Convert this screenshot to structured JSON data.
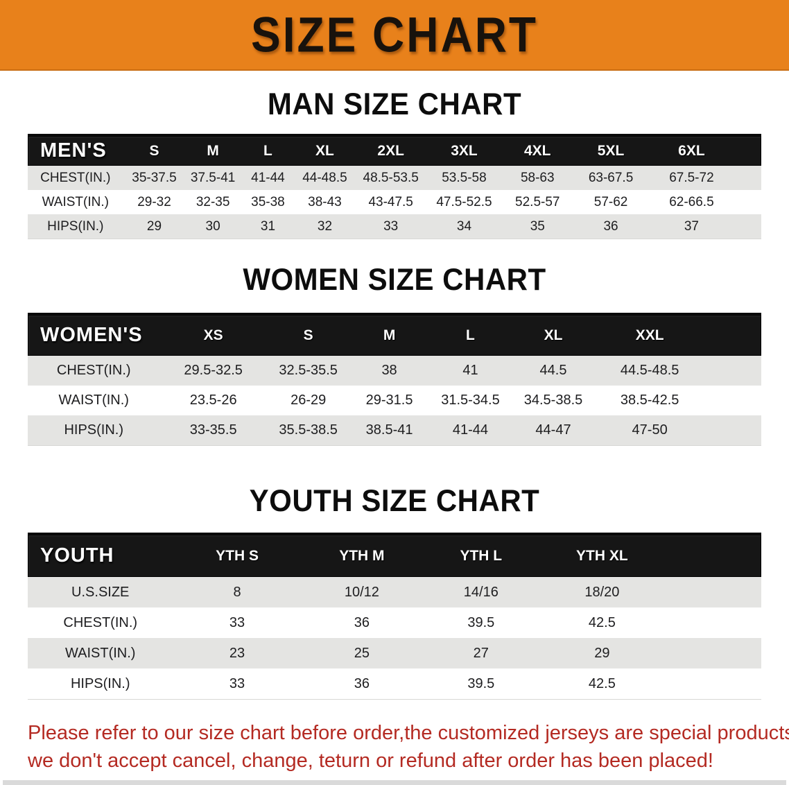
{
  "banner": {
    "title": "SIZE CHART"
  },
  "colors": {
    "banner_bg": "#E8811B",
    "header_bar": "#161616",
    "row_alt": "#E4E4E2",
    "disclaimer_text": "#B42A22"
  },
  "sections": [
    {
      "heading": "MAN SIZE CHART",
      "corner_label": "MEN'S",
      "sizes": [
        "S",
        "M",
        "L",
        "XL",
        "2XL",
        "3XL",
        "4XL",
        "5XL",
        "6XL"
      ],
      "rows": [
        {
          "label": "CHEST(IN.)",
          "shaded": true,
          "values": [
            "35-37.5",
            "37.5-41",
            "41-44",
            "44-48.5",
            "48.5-53.5",
            "53.5-58",
            "58-63",
            "63-67.5",
            "67.5-72"
          ]
        },
        {
          "label": "WAIST(IN.)",
          "shaded": false,
          "values": [
            "29-32",
            "32-35",
            "35-38",
            "38-43",
            "43-47.5",
            "47.5-52.5",
            "52.5-57",
            "57-62",
            "62-66.5"
          ]
        },
        {
          "label": "HIPS(IN.)",
          "shaded": true,
          "values": [
            "29",
            "30",
            "31",
            "32",
            "33",
            "34",
            "35",
            "36",
            "37"
          ]
        }
      ]
    },
    {
      "heading": "WOMEN SIZE CHART",
      "corner_label": "WOMEN'S",
      "sizes": [
        "XS",
        "S",
        "M",
        "L",
        "XL",
        "XXL"
      ],
      "rows": [
        {
          "label": "CHEST(IN.)",
          "shaded": true,
          "values": [
            "29.5-32.5",
            "32.5-35.5",
            "38",
            "41",
            "44.5",
            "44.5-48.5"
          ]
        },
        {
          "label": "WAIST(IN.)",
          "shaded": false,
          "values": [
            "23.5-26",
            "26-29",
            "29-31.5",
            "31.5-34.5",
            "34.5-38.5",
            "38.5-42.5"
          ]
        },
        {
          "label": "HIPS(IN.)",
          "shaded": true,
          "values": [
            "33-35.5",
            "35.5-38.5",
            "38.5-41",
            "41-44",
            "44-47",
            "47-50"
          ]
        }
      ]
    },
    {
      "heading": "YOUTH SIZE CHART",
      "corner_label": "YOUTH",
      "sizes": [
        "YTH S",
        "YTH M",
        "YTH L",
        "YTH XL"
      ],
      "rows": [
        {
          "label": "U.S.SIZE",
          "shaded": true,
          "values": [
            "8",
            "10/12",
            "14/16",
            "18/20"
          ]
        },
        {
          "label": "CHEST(IN.)",
          "shaded": false,
          "values": [
            "33",
            "36",
            "39.5",
            "42.5"
          ]
        },
        {
          "label": "WAIST(IN.)",
          "shaded": true,
          "values": [
            "23",
            "25",
            "27",
            "29"
          ]
        },
        {
          "label": "HIPS(IN.)",
          "shaded": false,
          "values": [
            "33",
            "36",
            "39.5",
            "42.5"
          ]
        }
      ]
    }
  ],
  "disclaimer": {
    "line1": "Please refer to our size chart before order,the customized jerseys are special products,",
    "line2": "we don't accept cancel, change, teturn or refund after order has been placed!"
  }
}
